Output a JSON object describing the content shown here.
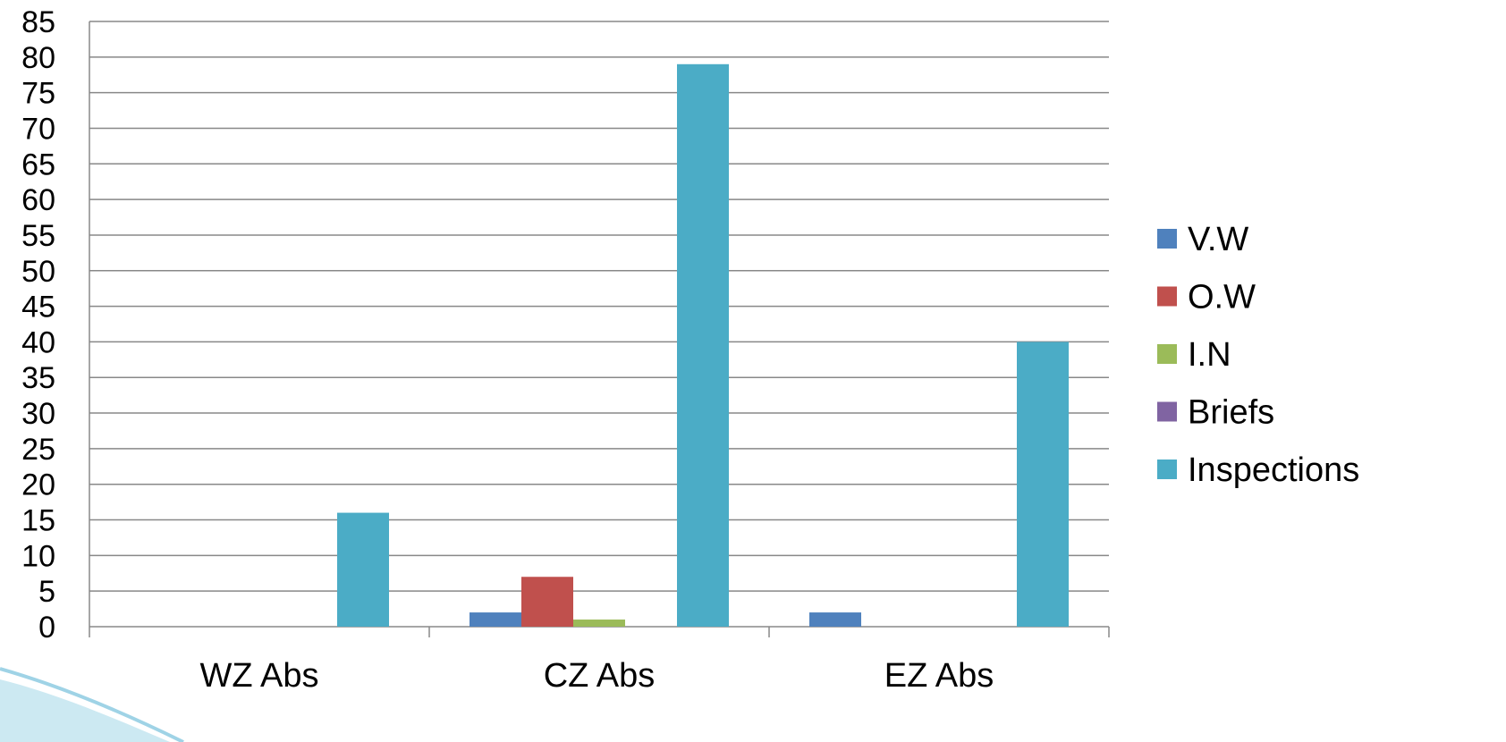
{
  "chart_data": {
    "type": "bar",
    "categories": [
      "WZ Abs",
      "CZ Abs",
      "EZ Abs"
    ],
    "series": [
      {
        "name": "V.W",
        "color": "#4f81bd",
        "values": [
          0,
          2,
          2
        ]
      },
      {
        "name": "O.W",
        "color": "#c0504d",
        "values": [
          0,
          7,
          0
        ]
      },
      {
        "name": "I.N",
        "color": "#9bbb59",
        "values": [
          0,
          1,
          0
        ]
      },
      {
        "name": "Briefs",
        "color": "#8064a2",
        "values": [
          0,
          0,
          0
        ]
      },
      {
        "name": "Inspections",
        "color": "#4bacc6",
        "values": [
          16,
          79,
          40
        ]
      }
    ],
    "ylim": [
      0,
      85
    ],
    "ytick_step": 5,
    "yticks": [
      "0",
      "5",
      "10",
      "15",
      "20",
      "25",
      "30",
      "35",
      "40",
      "45",
      "50",
      "55",
      "60",
      "65",
      "70",
      "75",
      "80",
      "85"
    ],
    "grid": true,
    "legend_position": "right",
    "title": "",
    "xlabel": "",
    "ylabel": ""
  }
}
